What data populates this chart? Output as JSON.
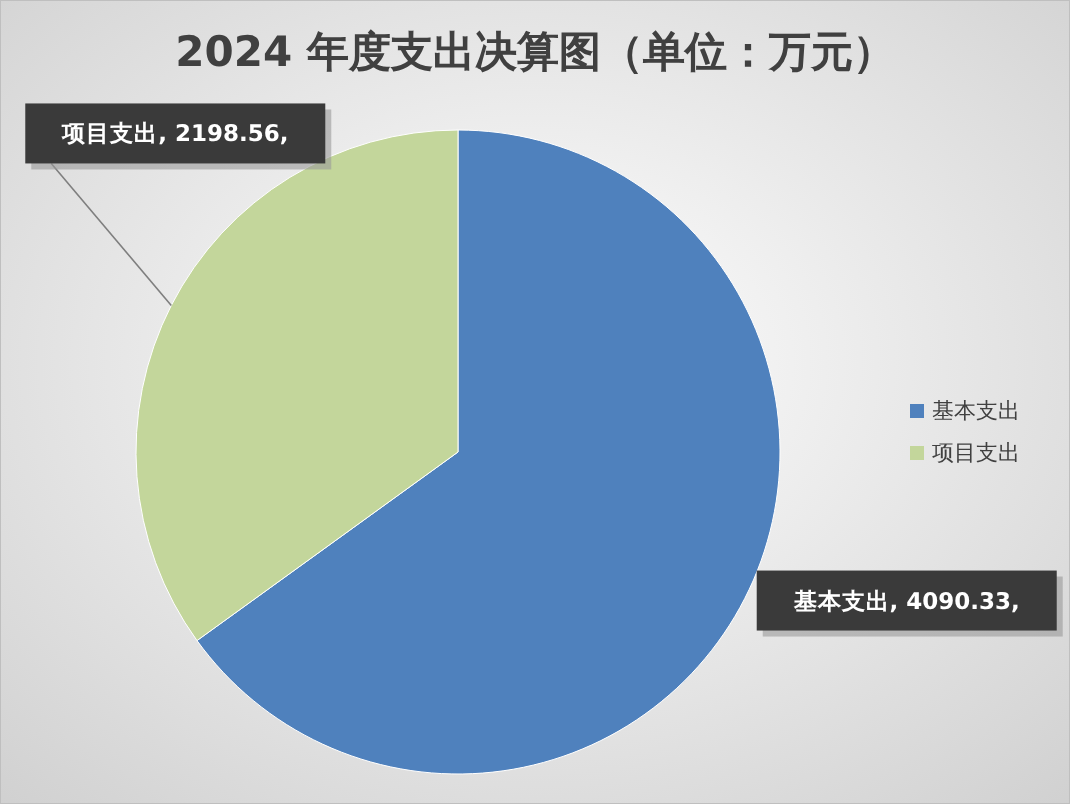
{
  "chart_data": {
    "type": "pie",
    "title": "2024 年度支出决算图（单位：万元）",
    "categories": [
      "基本支出",
      "项目支出"
    ],
    "values": [
      4090.33,
      2198.56
    ],
    "colors": [
      "#4f81bd",
      "#c3d69b"
    ],
    "value_labels": [
      "基本支出, 4090.33,",
      "项目支出, 2198.56,"
    ],
    "legend": "right"
  }
}
